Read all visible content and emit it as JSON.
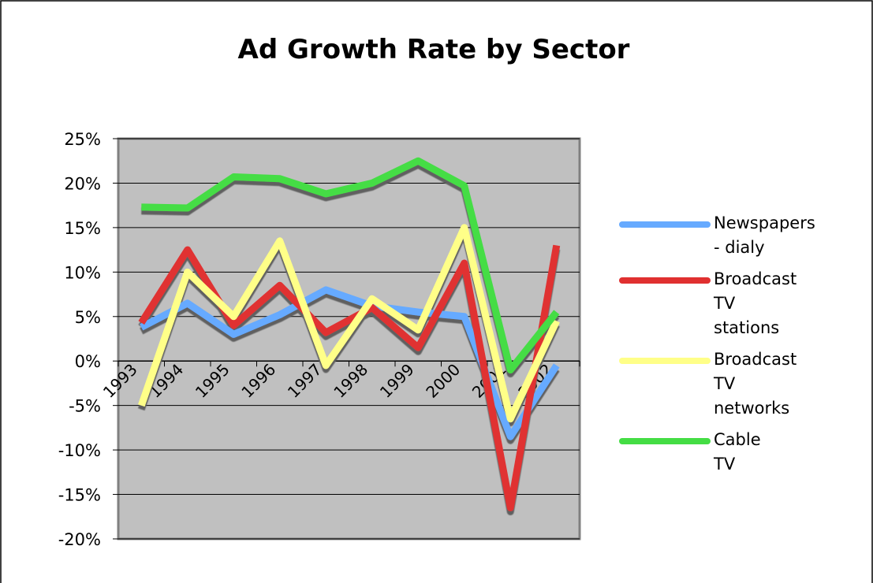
{
  "chart_data": {
    "type": "line",
    "title": "Ad Growth Rate by Sector",
    "categories": [
      "1993",
      "1994",
      "1995",
      "1996",
      "1997",
      "1998",
      "1999",
      "2000",
      "2001",
      "2002"
    ],
    "series": [
      {
        "name": "Newspapers - dialy",
        "color": "#66aaff",
        "values": [
          3.8,
          6.5,
          3,
          5.2,
          8,
          6.2,
          5.5,
          5,
          -8.5,
          -0.5
        ]
      },
      {
        "name": "Broadcast TV stations",
        "color": "#e03030",
        "values": [
          4.3,
          12.5,
          4,
          8.5,
          3.2,
          6,
          1.5,
          11,
          -16.5,
          13
        ]
      },
      {
        "name": "Broadcast TV networks",
        "color": "#ffff88",
        "values": [
          -5,
          10,
          5,
          13.5,
          -0.5,
          7,
          3.5,
          15,
          -6.5,
          4.5
        ]
      },
      {
        "name": "Cable TV",
        "color": "#44dd44",
        "values": [
          17.3,
          17.2,
          20.7,
          20.5,
          18.8,
          20,
          22.5,
          19.7,
          -1,
          5.5
        ]
      }
    ],
    "ylim": [
      -20,
      25
    ],
    "yticks": [
      {
        "value": -20,
        "label": "-20%"
      },
      {
        "value": -15,
        "label": "-15%"
      },
      {
        "value": -10,
        "label": "-10%"
      },
      {
        "value": -5,
        "label": "-5%"
      },
      {
        "value": 0,
        "label": "0%"
      },
      {
        "value": 5,
        "label": "5%"
      },
      {
        "value": 10,
        "label": "10%"
      },
      {
        "value": 15,
        "label": "15%"
      },
      {
        "value": 20,
        "label": "20%"
      },
      {
        "value": 25,
        "label": "25%"
      }
    ],
    "grid": true
  }
}
